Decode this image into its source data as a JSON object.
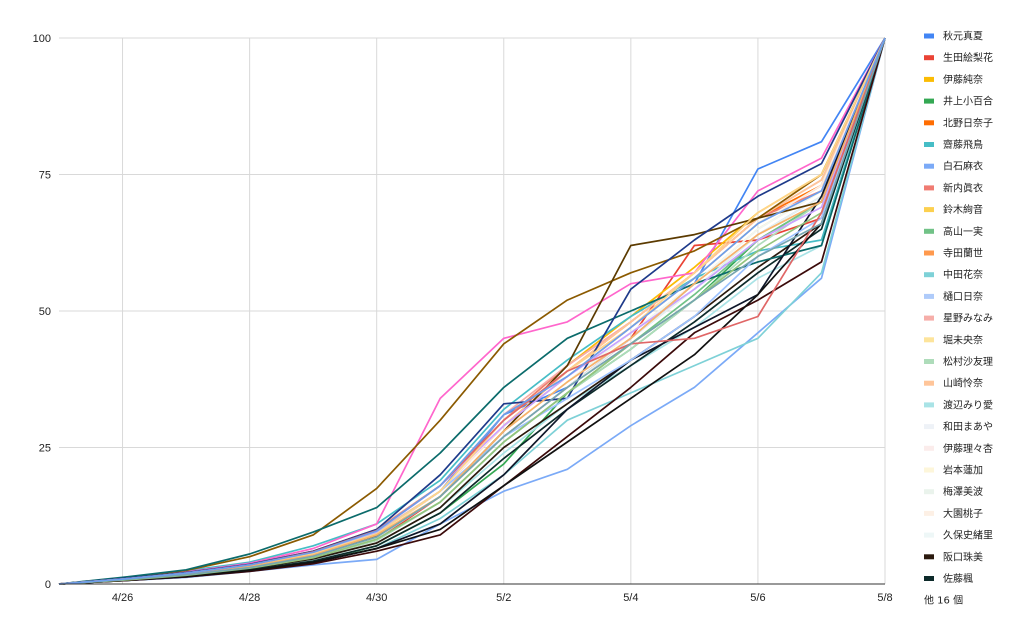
{
  "chart_data": {
    "type": "line",
    "x": [
      "4/25",
      "4/26",
      "4/27",
      "4/28",
      "4/29",
      "4/30",
      "5/1",
      "5/2",
      "5/3",
      "5/4",
      "5/5",
      "5/6",
      "5/7",
      "5/8"
    ],
    "x_tick_labels": [
      "4/26",
      "4/28",
      "4/30",
      "5/2",
      "5/4",
      "5/6",
      "5/8"
    ],
    "y_ticks": [
      0,
      25,
      50,
      75,
      100
    ],
    "ylim": [
      0,
      100
    ],
    "grid": true,
    "legend_position": "right",
    "legend_more": "他 16 個",
    "series": [
      {
        "name": "秋元真夏",
        "color": "#4285f4",
        "values": [
          0,
          1.0,
          2,
          3,
          5,
          9,
          17,
          31,
          36,
          45,
          55,
          76,
          81,
          100
        ]
      },
      {
        "name": "生田絵梨花",
        "color": "#ea4335",
        "values": [
          0,
          0.8,
          1.8,
          3,
          5,
          8,
          16,
          27,
          36,
          45,
          62,
          63,
          67,
          100
        ]
      },
      {
        "name": "伊藤純奈",
        "color": "#fbbc04",
        "values": [
          0,
          0.9,
          2,
          3.5,
          6,
          10,
          18,
          30,
          40,
          49,
          58,
          68,
          75,
          100
        ]
      },
      {
        "name": "井上小百合",
        "color": "#34a853",
        "values": [
          0,
          0.7,
          1.5,
          2.8,
          4,
          7,
          13,
          22,
          35,
          43,
          52,
          63,
          70,
          100
        ]
      },
      {
        "name": "北野日奈子",
        "color": "#ff6d01",
        "values": [
          0,
          0.9,
          2,
          3.3,
          5,
          9,
          17,
          29,
          39,
          48,
          57,
          67,
          73,
          100
        ]
      },
      {
        "name": "齋藤飛鳥",
        "color": "#46bdc6",
        "values": [
          0,
          1.1,
          2.4,
          4,
          7,
          11,
          19,
          32,
          41,
          49,
          56,
          61,
          63,
          100
        ]
      },
      {
        "name": "白石麻衣",
        "color": "#7baaf7",
        "values": [
          0,
          0.6,
          1.2,
          2.3,
          3.5,
          4.5,
          11,
          17,
          21,
          29,
          36,
          46,
          56,
          100
        ]
      },
      {
        "name": "新内眞衣",
        "color": "#f07b72",
        "values": [
          0,
          1.0,
          2.2,
          3.6,
          6,
          10,
          18,
          30,
          40,
          48,
          57,
          67,
          72,
          100
        ]
      },
      {
        "name": "鈴木絢音",
        "color": "#fcd04f",
        "values": [
          0,
          0.8,
          1.8,
          3.2,
          5.5,
          9,
          16,
          28,
          37,
          46,
          55,
          65,
          72,
          100
        ]
      },
      {
        "name": "高山一実",
        "color": "#71c287",
        "values": [
          0,
          0.7,
          1.6,
          2.9,
          4.8,
          8,
          15,
          26,
          35,
          44,
          53,
          63,
          70,
          100
        ]
      },
      {
        "name": "寺田蘭世",
        "color": "#ff994d",
        "values": [
          0,
          0.9,
          2,
          3.4,
          5.6,
          9.5,
          17,
          29,
          38,
          47,
          56,
          66,
          73,
          100
        ]
      },
      {
        "name": "中田花奈",
        "color": "#7ed1d7",
        "values": [
          0,
          0.6,
          1.3,
          2.4,
          4,
          6.5,
          12,
          20,
          30,
          35,
          40,
          45,
          57,
          100
        ]
      },
      {
        "name": "樋口日奈",
        "color": "#afcbfa",
        "values": [
          0,
          0.8,
          1.7,
          3,
          5,
          8.5,
          16,
          27,
          36,
          45,
          54,
          64,
          71,
          100
        ]
      },
      {
        "name": "星野みなみ",
        "color": "#f6aea9",
        "values": [
          0,
          1.0,
          2.1,
          3.6,
          6,
          10,
          18,
          31,
          40,
          48,
          57,
          67,
          74,
          100
        ]
      },
      {
        "name": "堀未央奈",
        "color": "#fde49b",
        "values": [
          0,
          0.9,
          1.9,
          3.3,
          5.5,
          9,
          17,
          29,
          38,
          47,
          56,
          66,
          73,
          100
        ]
      },
      {
        "name": "松村沙友理",
        "color": "#aedcba",
        "values": [
          0,
          0.7,
          1.6,
          2.9,
          4.7,
          8,
          15,
          26,
          35,
          43,
          52,
          62,
          70,
          100
        ]
      },
      {
        "name": "山崎怜奈",
        "color": "#ffc599",
        "values": [
          0,
          0.9,
          2,
          3.4,
          5.7,
          9.5,
          17,
          29,
          39,
          48,
          57,
          67,
          74,
          100
        ]
      },
      {
        "name": "渡辺みり愛",
        "color": "#a9e3e6",
        "values": [
          0,
          0.7,
          1.5,
          2.7,
          4.5,
          7.5,
          14,
          24,
          33,
          40,
          47,
          56,
          62,
          100
        ]
      },
      {
        "name": "和田まあや",
        "color": "#eef2f7",
        "values": [
          0,
          0.8,
          1.8,
          3.1,
          5.2,
          8.8,
          16,
          28,
          37,
          46,
          55,
          65,
          72,
          100
        ]
      },
      {
        "name": "伊藤理々杏",
        "color": "#fbeceb",
        "values": [
          0,
          0.9,
          1.9,
          3.3,
          5.5,
          9,
          17,
          29,
          38,
          47,
          56,
          66,
          73,
          100
        ]
      },
      {
        "name": "岩本蓮加",
        "color": "#fdf6da",
        "values": [
          0,
          0.8,
          1.8,
          3.2,
          5.4,
          9,
          16,
          28,
          37,
          46,
          55,
          65,
          72,
          100
        ]
      },
      {
        "name": "梅澤美波",
        "color": "#eaf3ec",
        "values": [
          0,
          0.7,
          1.6,
          3,
          5,
          8.5,
          16,
          27,
          36,
          45,
          54,
          64,
          71,
          100
        ]
      },
      {
        "name": "大園桃子",
        "color": "#fdf0e5",
        "values": [
          0,
          0.8,
          1.7,
          3.1,
          5.2,
          8.8,
          16,
          28,
          37,
          46,
          55,
          65,
          72,
          100
        ]
      },
      {
        "name": "久保史緒里",
        "color": "#eef7f7",
        "values": [
          0,
          0.8,
          1.8,
          3.2,
          5.3,
          9,
          16,
          28,
          37,
          46,
          55,
          65,
          72,
          100
        ]
      },
      {
        "name": "阪口珠美",
        "color": "#2b1a0e",
        "values": [
          0,
          0.7,
          1.5,
          2.8,
          4.6,
          7.5,
          14,
          25,
          33,
          41,
          49,
          58,
          66,
          100
        ]
      },
      {
        "name": "佐藤楓",
        "color": "#0d2a2a",
        "values": [
          0,
          0.6,
          1.4,
          2.6,
          4.2,
          7,
          13,
          23,
          32,
          40,
          48,
          57,
          65,
          100
        ]
      },
      {
        "name": "",
        "color": "#ff66cc",
        "values": [
          0,
          1.0,
          2.2,
          3.8,
          6.5,
          11,
          34,
          45,
          48,
          55,
          57,
          72,
          78,
          100
        ]
      },
      {
        "name": "",
        "color": "#8b5a00",
        "values": [
          0,
          1.1,
          2.5,
          5,
          9,
          17.5,
          30,
          44,
          52,
          57,
          61,
          67,
          75,
          100
        ]
      },
      {
        "name": "",
        "color": "#5b3a00",
        "values": [
          0,
          0.8,
          1.8,
          3.2,
          5.2,
          8.7,
          16,
          28,
          40,
          62,
          64,
          67,
          70,
          100
        ]
      },
      {
        "name": "",
        "color": "#0b6b6b",
        "values": [
          0,
          1.2,
          2.6,
          5.5,
          9.5,
          14,
          24,
          36,
          45,
          50,
          55,
          59,
          62,
          100
        ]
      },
      {
        "name": "",
        "color": "#1e3a8a",
        "values": [
          0,
          1.0,
          2.1,
          3.6,
          6,
          10,
          20,
          33,
          34,
          54,
          63,
          71,
          77,
          100
        ]
      },
      {
        "name": "",
        "color": "#0f172a",
        "values": [
          0,
          0.6,
          1.3,
          2.4,
          3.9,
          6.5,
          11,
          20,
          32,
          41,
          47,
          53,
          71,
          100
        ]
      },
      {
        "name": "",
        "color": "#3b0a0a",
        "values": [
          0,
          0.6,
          1.3,
          2.3,
          3.7,
          6,
          9,
          18,
          27,
          36,
          46,
          52,
          59,
          100
        ]
      },
      {
        "name": "",
        "color": "#111111",
        "values": [
          0,
          0.7,
          1.4,
          2.5,
          4,
          6.5,
          10,
          18,
          26,
          34,
          42,
          53,
          66,
          100
        ]
      },
      {
        "name": "",
        "color": "#9ec3ff",
        "values": [
          0,
          0.8,
          1.8,
          3.3,
          5.6,
          9.3,
          17,
          27,
          34,
          41,
          49,
          60,
          67,
          100
        ]
      },
      {
        "name": "",
        "color": "#c9a3ff",
        "values": [
          0,
          0.9,
          2,
          3.4,
          5.8,
          9.6,
          18,
          29,
          38,
          46,
          54,
          63,
          69,
          100
        ]
      },
      {
        "name": "",
        "color": "#ffd58a",
        "values": [
          0,
          0.9,
          1.9,
          3.3,
          5.5,
          9.2,
          17,
          30,
          39,
          47,
          57,
          68,
          75,
          100
        ]
      },
      {
        "name": "",
        "color": "#f6b26b",
        "values": [
          0,
          0.8,
          1.8,
          3.2,
          5.3,
          9,
          16,
          28,
          37,
          45,
          55,
          64,
          70,
          100
        ]
      },
      {
        "name": "",
        "color": "#93c47d",
        "values": [
          0,
          0.7,
          1.6,
          2.9,
          4.8,
          8.2,
          15,
          26,
          35,
          44,
          52,
          61,
          68,
          100
        ]
      },
      {
        "name": "",
        "color": "#e06666",
        "values": [
          0,
          0.9,
          2,
          3.5,
          5.9,
          9.8,
          18,
          30,
          39,
          44,
          45,
          49,
          68,
          100
        ]
      },
      {
        "name": "",
        "color": "#76a5af",
        "values": [
          0,
          0.8,
          1.7,
          3,
          5.1,
          8.6,
          16,
          27,
          36,
          44,
          52,
          60,
          66,
          100
        ]
      },
      {
        "name": "",
        "color": "#6d9eeb",
        "values": [
          0,
          0.9,
          2,
          3.5,
          5.8,
          9.7,
          18,
          31,
          38,
          47,
          56,
          66,
          72,
          100
        ]
      }
    ]
  }
}
